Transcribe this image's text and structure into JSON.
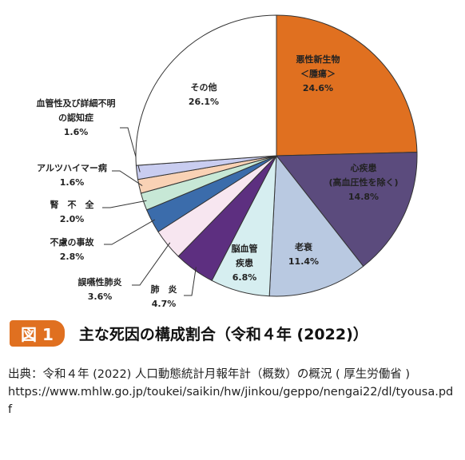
{
  "chart_data": {
    "type": "pie",
    "categories": [
      [
        "悪性新生物",
        "＜腫瘍＞"
      ],
      [
        "心疾患",
        "(高血圧性を除く)"
      ],
      [
        "老衰"
      ],
      [
        "脳血管",
        "疾患"
      ],
      [
        "肺　炎"
      ],
      [
        "誤嚥性肺炎"
      ],
      [
        "不慮の事故"
      ],
      [
        "腎　不　全"
      ],
      [
        "アルツハイマー病"
      ],
      [
        "血管性及び詳細不明",
        "の認知症"
      ],
      [
        "その他"
      ]
    ],
    "values": [
      24.6,
      14.8,
      11.4,
      6.8,
      4.7,
      3.6,
      2.8,
      2.0,
      1.6,
      1.6,
      26.1
    ],
    "value_labels": [
      "24.6%",
      "14.8%",
      "11.4%",
      "6.8%",
      "4.7%",
      "3.6%",
      "2.8%",
      "2.0%",
      "1.6%",
      "1.6%",
      "26.1%"
    ],
    "colors": [
      "#e07020",
      "#5b4b7d",
      "#b9c9e1",
      "#d6eef0",
      "#5d2f80",
      "#f7e6f0",
      "#3b6cab",
      "#c7e8d6",
      "#f9d2b5",
      "#c9cdf0",
      "#ffffff"
    ]
  },
  "caption": {
    "number": "図 1",
    "title": "主な死因の構成割合（令和４年 (2022)）"
  },
  "source": [
    "出典：令和４年 (2022) 人口動態統計月報年計（概数）の概況 ( 厚生労働省 )",
    "https://www.mhlw.go.jp/toukei/saikin/hw/jinkou/geppo/nengai22/dl/tyousa.pdf"
  ]
}
